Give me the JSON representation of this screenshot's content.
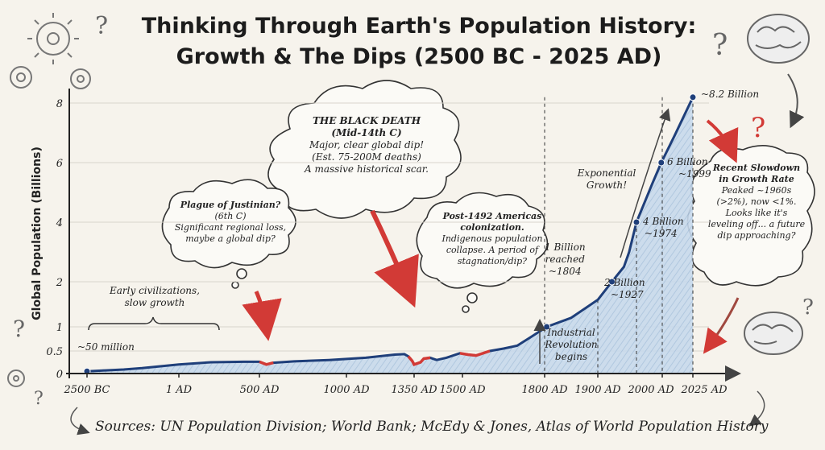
{
  "chart_data": {
    "type": "line",
    "title": "Thinking Through Earth's Population History:",
    "subtitle": "Growth & The Dips (2500 BC - 2025 AD)",
    "ylabel": "Global Population (Billions)",
    "xlabel": "",
    "ylim": [
      0,
      8.5
    ],
    "y_ticks": [
      {
        "value": 0,
        "label": "0"
      },
      {
        "value": 0.5,
        "label": "0.5"
      },
      {
        "value": 1,
        "label": "1"
      },
      {
        "value": 2,
        "label": "2"
      },
      {
        "value": 4,
        "label": "4"
      },
      {
        "value": 6,
        "label": "6"
      },
      {
        "value": 8,
        "label": "8"
      }
    ],
    "x_ticks": [
      "2500 BC",
      "1 AD",
      "500 AD",
      "1000 AD",
      "1350 AD",
      "1500 AD",
      "1800 AD",
      "1900 AD",
      "2000 AD",
      "2025 AD"
    ],
    "series": [
      {
        "name": "Global Population",
        "x": [
          -2500,
          -2000,
          -1500,
          -1000,
          -500,
          1,
          200,
          400,
          500,
          540,
          580,
          700,
          900,
          1100,
          1250,
          1300,
          1320,
          1340,
          1350,
          1370,
          1380,
          1400,
          1420,
          1450,
          1492,
          1520,
          1550,
          1600,
          1650,
          1700,
          1750,
          1804,
          1850,
          1900,
          1927,
          1950,
          1960,
          1974,
          1990,
          1999,
          2010,
          2025
        ],
        "values": [
          0.05,
          0.07,
          0.09,
          0.12,
          0.16,
          0.2,
          0.25,
          0.26,
          0.26,
          0.2,
          0.24,
          0.27,
          0.3,
          0.35,
          0.42,
          0.43,
          0.38,
          0.28,
          0.2,
          0.25,
          0.33,
          0.35,
          0.3,
          0.35,
          0.45,
          0.42,
          0.4,
          0.5,
          0.55,
          0.61,
          0.79,
          1.0,
          1.2,
          1.6,
          2.0,
          2.5,
          3.0,
          4.0,
          5.3,
          6.0,
          6.9,
          8.2
        ]
      }
    ],
    "milestones": [
      {
        "label": "~8.2 Billion"
      },
      {
        "label": "6 Billion",
        "sub": "~1999"
      },
      {
        "label": "4 Billion",
        "sub": "~1974"
      },
      {
        "label": "2 Billion",
        "sub": "~1927"
      },
      {
        "label": "1 Billion",
        "sub2": "reached",
        "sub": "~1804"
      },
      {
        "label": "~50 million"
      }
    ],
    "annotations": {
      "early": [
        "Early civilizations,",
        "slow growth"
      ],
      "justinian": [
        "Plague of Justinian?",
        "(6th C)",
        "Significant regional loss,",
        "maybe a global dip?"
      ],
      "black_death": [
        "THE BLACK DEATH",
        "(Mid-14th C)",
        "Major, clear global dip!",
        "(Est. 75-200M deaths)",
        "A massive historical scar."
      ],
      "americas": [
        "Post-1492 Americas",
        "colonization.",
        "Indigenous population",
        "collapse. A period of",
        "stagnation/dip?"
      ],
      "exponential": [
        "Exponential",
        "Growth!"
      ],
      "industrial": [
        "Industrial",
        "Revolution",
        "begins"
      ],
      "slowdown": [
        "Recent Slowdown",
        "in Growth Rate",
        "Peaked ~1960s",
        "(>2%), now <1%.",
        "Looks like it's",
        "leveling off... a future",
        "dip approaching?"
      ]
    }
  },
  "sources": "Sources: UN Population Division; World Bank; McEdy & Jones, Atlas of World Population History",
  "colors": {
    "line": "#1f3f7a",
    "area": "#b9d0e6",
    "dip": "#d23a36",
    "background": "#f6f3ec"
  }
}
